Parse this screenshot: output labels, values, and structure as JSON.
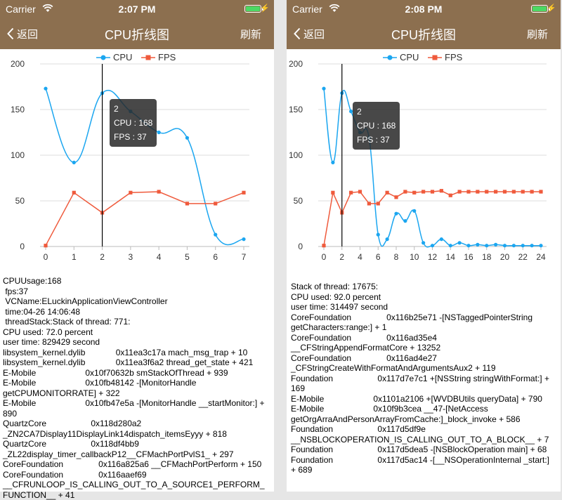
{
  "screens": [
    {
      "status": {
        "carrier": "Carrier",
        "time": "2:07 PM"
      },
      "nav": {
        "back_label": "返回",
        "title": "CPU折线图",
        "refresh_label": "刷新"
      },
      "legend": {
        "cpu": "CPU",
        "fps": "FPS"
      },
      "tooltip": {
        "index": "2",
        "cpu": "CPU : 168",
        "fps": "FPS : 37"
      },
      "chart_data": {
        "type": "line",
        "x": [
          0,
          1,
          2,
          3,
          4,
          5,
          6,
          7
        ],
        "series": [
          {
            "name": "CPU",
            "color": "#1ba6f0",
            "values": [
              173,
              92,
              168,
              148,
              125,
              119,
              13,
              8
            ]
          },
          {
            "name": "FPS",
            "color": "#ef5a3c",
            "values": [
              1,
              59,
              37,
              59,
              60,
              47,
              47,
              59
            ]
          }
        ],
        "xticks": [
          0,
          1,
          2,
          3,
          4,
          5,
          6,
          7
        ],
        "yticks": [
          0,
          50,
          100,
          150,
          200
        ],
        "xlim": [
          0,
          7
        ],
        "ylim": [
          0,
          200
        ],
        "grid": true,
        "legend": "top",
        "highlight_x": 2
      },
      "log": "CPUUsage:168\n fps:37\n VCName:ELuckinApplicationViewController\n time:04-26 14:06:48\n threadStack:Stack of thread: 771:\nCPU used: 72.0 percent\nuser time: 829429 second\nlibsystem_kernel.dylib             0x11ea3c17a mach_msg_trap + 10\nlibsystem_kernel.dylib             0x11ea3f6a2 thread_get_state + 421\nE-Mobile                     0x10f70632b smStackOfThread + 939\nE-Mobile                     0x10fb48142 -[MonitorHandle getCPUMONITORRATE] + 322\nE-Mobile                     0x10fb47e5a -[MonitorHandle __startMonitor:] + 890\nQuartzCore                   0x118d280a2 _ZN2CA7Display11DisplayLink14dispatch_itemsEyyy + 818\nQuartzCore                   0x118df4bb9 _ZL22display_timer_callbackP12__CFMachPortPvlS1_ + 297\nCoreFoundation               0x116a825a6 __CFMachPortPerform + 150\nCoreFoundation               0x116aaef69 __CFRUNLOOP_IS_CALLING_OUT_TO_A_SOURCE1_PERFORM_FUNCTION__ + 41"
    },
    {
      "status": {
        "carrier": "Carrier",
        "time": "2:08 PM"
      },
      "nav": {
        "back_label": "返回",
        "title": "CPU折线图",
        "refresh_label": "刷新"
      },
      "legend": {
        "cpu": "CPU",
        "fps": "FPS"
      },
      "tooltip": {
        "index": "2",
        "cpu": "CPU : 168",
        "fps": "FPS : 37"
      },
      "chart_data": {
        "type": "line",
        "x": [
          0,
          1,
          2,
          3,
          4,
          5,
          6,
          7,
          8,
          9,
          10,
          11,
          12,
          13,
          14,
          15,
          16,
          17,
          18,
          19,
          20,
          21,
          22,
          23,
          24
        ],
        "series": [
          {
            "name": "CPU",
            "color": "#1ba6f0",
            "values": [
              173,
              92,
              168,
              148,
              125,
              119,
              13,
              8,
              36,
              28,
              39,
              4,
              1,
              8,
              1,
              4,
              1,
              2,
              1,
              2,
              1,
              1,
              1,
              1,
              1
            ]
          },
          {
            "name": "FPS",
            "color": "#ef5a3c",
            "values": [
              1,
              59,
              37,
              59,
              60,
              47,
              47,
              59,
              54,
              60,
              59,
              60,
              60,
              61,
              56,
              60,
              60,
              60,
              60,
              60,
              60,
              60,
              60,
              60,
              60
            ]
          }
        ],
        "xticks": [
          0,
          2,
          4,
          6,
          8,
          10,
          12,
          14,
          16,
          18,
          20,
          22,
          24
        ],
        "yticks": [
          0,
          50,
          100,
          150,
          200
        ],
        "xlim": [
          0,
          24
        ],
        "ylim": [
          0,
          200
        ],
        "grid": true,
        "legend": "top",
        "highlight_x": 2
      },
      "log": "Stack of thread: 17675:\nCPU used: 92.0 percent\nuser time: 314497 second\nCoreFoundation               0x116b25e71 -[NSTaggedPointerString getCharacters:range:] + 1\nCoreFoundation               0x116ad35e4 __CFStringAppendFormatCore + 13252\nCoreFoundation               0x116ad4e27 _CFStringCreateWithFormatAndArgumentsAux2 + 119\nFoundation                   0x117d7e7c1 +[NSString stringWithFormat:] + 169\nE-Mobile                     0x1101a2106 +[WVDBUtils queryData] + 790\nE-Mobile                     0x10f9b3cea __47-[NetAccess getOrgArraAndPersonArrayFromCache:]_block_invoke + 586\nFoundation                   0x117d5df9e __NSBLOCKOPERATION_IS_CALLING_OUT_TO_A_BLOCK__ + 7\nFoundation                   0x117d5dea5 -[NSBlockOperation main] + 68\nFoundation                   0x117d5ac14 -[__NSOperationInternal _start:] + 689"
    }
  ]
}
